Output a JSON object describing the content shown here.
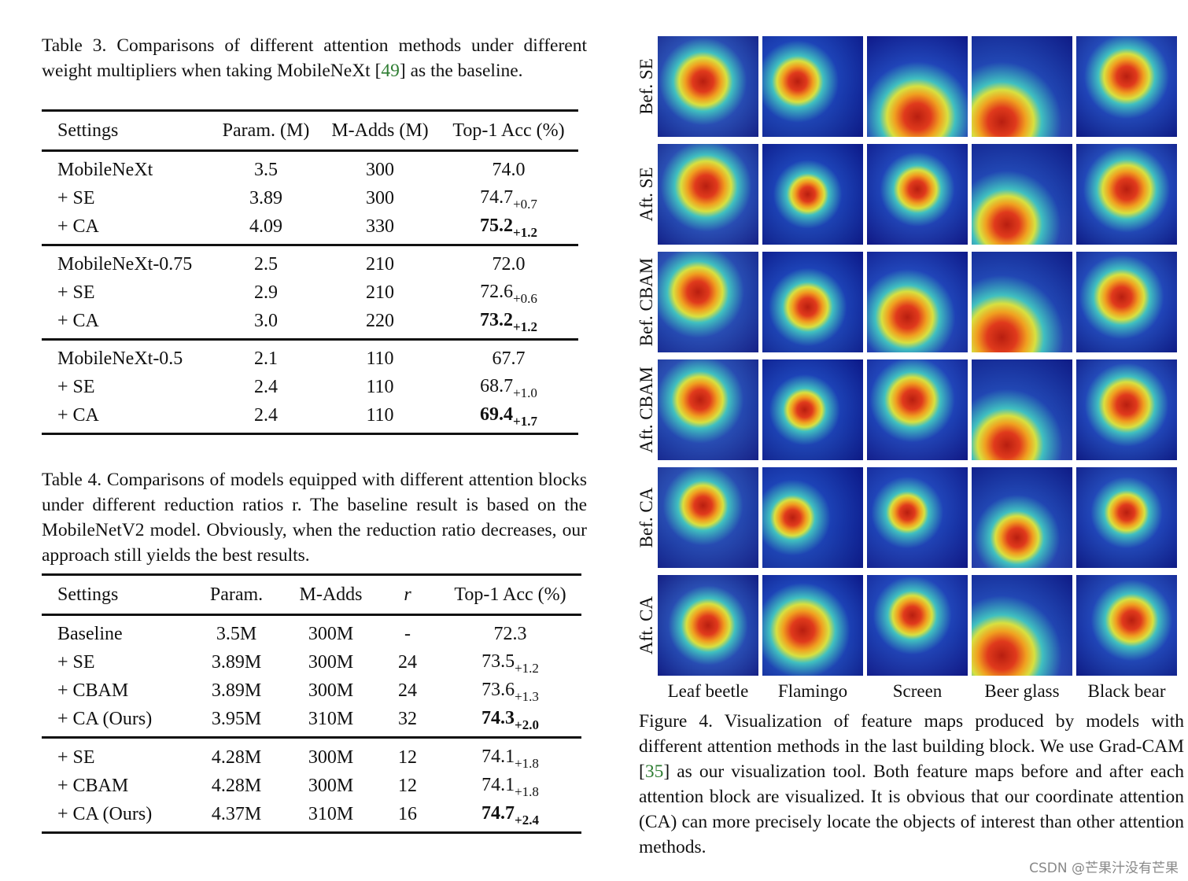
{
  "table3": {
    "caption_prefix": "Table 3. Comparisons of different attention methods under different weight multipliers when taking MobileNeXt [",
    "caption_ref": "49",
    "caption_suffix": "] as the baseline.",
    "headers": [
      "Settings",
      "Param. (M)",
      "M-Adds (M)",
      "Top-1 Acc (%)"
    ],
    "groups": [
      [
        {
          "setting": "MobileNeXt",
          "param": "3.5",
          "madds": "300",
          "acc": "74.0",
          "delta": "",
          "bold": false
        },
        {
          "setting": "+ SE",
          "param": "3.89",
          "madds": "300",
          "acc": "74.7",
          "delta": "+0.7",
          "bold": false
        },
        {
          "setting": "+ CA",
          "param": "4.09",
          "madds": "330",
          "acc": "75.2",
          "delta": "+1.2",
          "bold": true
        }
      ],
      [
        {
          "setting": "MobileNeXt-0.75",
          "param": "2.5",
          "madds": "210",
          "acc": "72.0",
          "delta": "",
          "bold": false
        },
        {
          "setting": "+ SE",
          "param": "2.9",
          "madds": "210",
          "acc": "72.6",
          "delta": "+0.6",
          "bold": false
        },
        {
          "setting": "+ CA",
          "param": "3.0",
          "madds": "220",
          "acc": "73.2",
          "delta": "+1.2",
          "bold": true
        }
      ],
      [
        {
          "setting": "MobileNeXt-0.5",
          "param": "2.1",
          "madds": "110",
          "acc": "67.7",
          "delta": "",
          "bold": false
        },
        {
          "setting": "+ SE",
          "param": "2.4",
          "madds": "110",
          "acc": "68.7",
          "delta": "+1.0",
          "bold": false
        },
        {
          "setting": "+ CA",
          "param": "2.4",
          "madds": "110",
          "acc": "69.4",
          "delta": "+1.7",
          "bold": true
        }
      ]
    ]
  },
  "table4": {
    "caption": "Table 4. Comparisons of models equipped with different attention blocks under different reduction ratios r. The baseline result is based on the MobileNetV2 model. Obviously, when the reduction ratio decreases, our approach still yields the best results.",
    "headers": [
      "Settings",
      "Param.",
      "M-Adds",
      "r",
      "Top-1 Acc (%)"
    ],
    "groups": [
      [
        {
          "setting": "Baseline",
          "param": "3.5M",
          "madds": "300M",
          "r": "-",
          "acc": "72.3",
          "delta": "",
          "bold": false
        },
        {
          "setting": "+ SE",
          "param": "3.89M",
          "madds": "300M",
          "r": "24",
          "acc": "73.5",
          "delta": "+1.2",
          "bold": false
        },
        {
          "setting": "+ CBAM",
          "param": "3.89M",
          "madds": "300M",
          "r": "24",
          "acc": "73.6",
          "delta": "+1.3",
          "bold": false
        },
        {
          "setting": "+ CA (Ours)",
          "param": "3.95M",
          "madds": "310M",
          "r": "32",
          "acc": "74.3",
          "delta": "+2.0",
          "bold": true
        }
      ],
      [
        {
          "setting": "+ SE",
          "param": "4.28M",
          "madds": "300M",
          "r": "12",
          "acc": "74.1",
          "delta": "+1.8",
          "bold": false
        },
        {
          "setting": "+ CBAM",
          "param": "4.28M",
          "madds": "300M",
          "r": "12",
          "acc": "74.1",
          "delta": "+1.8",
          "bold": false
        },
        {
          "setting": "+ CA (Ours)",
          "param": "4.37M",
          "madds": "310M",
          "r": "16",
          "acc": "74.7",
          "delta": "+2.4",
          "bold": true
        }
      ]
    ]
  },
  "figure4": {
    "row_labels": [
      "Bef. SE",
      "Aft. SE",
      "Bef. CBAM",
      "Aft. CBAM",
      "Bef. CA",
      "Aft. CA"
    ],
    "column_labels": [
      "Leaf beetle",
      "Flamingo",
      "Screen",
      "Beer glass",
      "Black bear"
    ],
    "caption_prefix": "Figure 4. Visualization of feature maps produced by models with different attention methods in the last building block. We use Grad-CAM [",
    "caption_ref": "35",
    "caption_suffix": "] as our visualization tool. Both feature maps before and after each attention block are visualized. It is obvious that our coordinate attention (CA) can more precisely locate the objects of interest than other attention methods."
  },
  "watermark": "CSDN @芒果汁没有芒果"
}
